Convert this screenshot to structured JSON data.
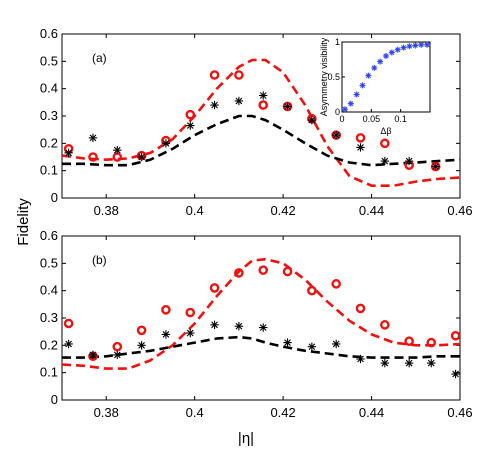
{
  "chart_data": {
    "type": "line",
    "ylabel": "Fidelity",
    "xlabel": "|η|",
    "panels": [
      {
        "label": "(a)",
        "xlim": [
          0.37,
          0.46
        ],
        "ylim": [
          0,
          0.6
        ],
        "xticks": [
          "0.38",
          "0.4",
          "0.42",
          "0.44",
          "0.46"
        ],
        "yticks": [
          "0",
          "0.1",
          "0.2",
          "0.3",
          "0.4",
          "0.5",
          "0.6"
        ],
        "series": [
          {
            "style": "red-dashed",
            "color": "#ee1111",
            "x": [
              0.37,
              0.375,
              0.38,
              0.385,
              0.39,
              0.395,
              0.4,
              0.405,
              0.41,
              0.413,
              0.416,
              0.42,
              0.425,
              0.43,
              0.435,
              0.44,
              0.445,
              0.45,
              0.455,
              0.46
            ],
            "y": [
              0.155,
              0.145,
              0.14,
              0.145,
              0.165,
              0.215,
              0.3,
              0.4,
              0.48,
              0.505,
              0.505,
              0.46,
              0.34,
              0.19,
              0.08,
              0.045,
              0.045,
              0.06,
              0.07,
              0.075
            ]
          },
          {
            "style": "black-dashed",
            "color": "#000000",
            "x": [
              0.37,
              0.375,
              0.38,
              0.385,
              0.39,
              0.395,
              0.4,
              0.405,
              0.41,
              0.413,
              0.416,
              0.42,
              0.425,
              0.43,
              0.435,
              0.44,
              0.445,
              0.45,
              0.455,
              0.46
            ],
            "y": [
              0.125,
              0.125,
              0.12,
              0.12,
              0.14,
              0.18,
              0.23,
              0.27,
              0.3,
              0.3,
              0.285,
              0.25,
              0.2,
              0.155,
              0.13,
              0.12,
              0.125,
              0.13,
              0.135,
              0.14
            ]
          },
          {
            "style": "red-circles",
            "color": "#ee1111",
            "x": [
              0.3715,
              0.377,
              0.3825,
              0.388,
              0.3935,
              0.399,
              0.4045,
              0.41,
              0.4155,
              0.421,
              0.4265,
              0.432,
              0.4375,
              0.443,
              0.4485,
              0.4545
            ],
            "y": [
              0.18,
              0.15,
              0.15,
              0.155,
              0.21,
              0.305,
              0.45,
              0.45,
              0.34,
              0.335,
              0.29,
              0.23,
              0.22,
              0.2,
              0.12,
              0.115
            ]
          },
          {
            "style": "black-stars",
            "color": "#000000",
            "x": [
              0.3715,
              0.377,
              0.3825,
              0.388,
              0.3935,
              0.399,
              0.4045,
              0.41,
              0.4155,
              0.421,
              0.4265,
              0.432,
              0.4375,
              0.443,
              0.4485,
              0.4545
            ],
            "y": [
              0.165,
              0.22,
              0.175,
              0.15,
              0.2,
              0.265,
              0.34,
              0.355,
              0.375,
              0.335,
              0.285,
              0.23,
              0.185,
              0.135,
              0.135,
              0.115
            ]
          }
        ]
      },
      {
        "label": "(b)",
        "xlim": [
          0.37,
          0.46
        ],
        "ylim": [
          0,
          0.6
        ],
        "xticks": [
          "0.38",
          "0.4",
          "0.42",
          "0.44",
          "0.46"
        ],
        "yticks": [
          "0",
          "0.1",
          "0.2",
          "0.3",
          "0.4",
          "0.5",
          "0.6"
        ],
        "series": [
          {
            "style": "red-dashed",
            "color": "#ee1111",
            "x": [
              0.37,
              0.375,
              0.38,
              0.385,
              0.39,
              0.395,
              0.4,
              0.405,
              0.41,
              0.413,
              0.416,
              0.42,
              0.425,
              0.43,
              0.435,
              0.44,
              0.445,
              0.45,
              0.455,
              0.46
            ],
            "y": [
              0.13,
              0.125,
              0.115,
              0.115,
              0.145,
              0.2,
              0.28,
              0.38,
              0.47,
              0.51,
              0.515,
              0.5,
              0.44,
              0.36,
              0.29,
              0.24,
              0.21,
              0.2,
              0.2,
              0.205
            ]
          },
          {
            "style": "black-dashed",
            "color": "#000000",
            "x": [
              0.37,
              0.375,
              0.38,
              0.385,
              0.39,
              0.395,
              0.4,
              0.405,
              0.41,
              0.413,
              0.416,
              0.42,
              0.425,
              0.43,
              0.435,
              0.44,
              0.445,
              0.45,
              0.455,
              0.46
            ],
            "y": [
              0.155,
              0.155,
              0.16,
              0.17,
              0.18,
              0.195,
              0.21,
              0.225,
              0.23,
              0.225,
              0.21,
              0.195,
              0.18,
              0.17,
              0.16,
              0.155,
              0.155,
              0.155,
              0.16,
              0.16
            ]
          },
          {
            "style": "red-circles",
            "color": "#ee1111",
            "x": [
              0.3715,
              0.377,
              0.3825,
              0.388,
              0.3935,
              0.399,
              0.4045,
              0.41,
              0.4155,
              0.421,
              0.4265,
              0.432,
              0.4375,
              0.443,
              0.4485,
              0.4535,
              0.459
            ],
            "y": [
              0.28,
              0.16,
              0.195,
              0.255,
              0.33,
              0.32,
              0.41,
              0.465,
              0.475,
              0.47,
              0.4,
              0.425,
              0.335,
              0.275,
              0.215,
              0.21,
              0.235
            ]
          },
          {
            "style": "black-stars",
            "color": "#000000",
            "x": [
              0.3715,
              0.377,
              0.3825,
              0.388,
              0.3935,
              0.399,
              0.4045,
              0.41,
              0.4155,
              0.421,
              0.4265,
              0.432,
              0.4375,
              0.443,
              0.4485,
              0.4535,
              0.459
            ],
            "y": [
              0.205,
              0.165,
              0.165,
              0.2,
              0.24,
              0.245,
              0.275,
              0.27,
              0.265,
              0.21,
              0.195,
              0.205,
              0.15,
              0.135,
              0.135,
              0.135,
              0.095
            ]
          }
        ]
      }
    ],
    "inset": {
      "type": "scatter",
      "ylabel": "Asymmetry visibility",
      "xlabel": "Δβ",
      "xlim": [
        0,
        0.15
      ],
      "ylim": [
        0,
        1
      ],
      "xticks": [
        "0",
        "0.05",
        "0.1"
      ],
      "yticks": [
        "0",
        "0.5",
        "1"
      ],
      "series": [
        {
          "style": "blue-stars",
          "color": "#3344ee",
          "x": [
            0.005,
            0.015,
            0.025,
            0.035,
            0.045,
            0.055,
            0.065,
            0.075,
            0.085,
            0.095,
            0.105,
            0.115,
            0.125,
            0.135,
            0.145
          ],
          "y": [
            0.04,
            0.12,
            0.25,
            0.38,
            0.52,
            0.63,
            0.72,
            0.8,
            0.85,
            0.89,
            0.92,
            0.94,
            0.95,
            0.96,
            0.96
          ]
        }
      ]
    }
  }
}
